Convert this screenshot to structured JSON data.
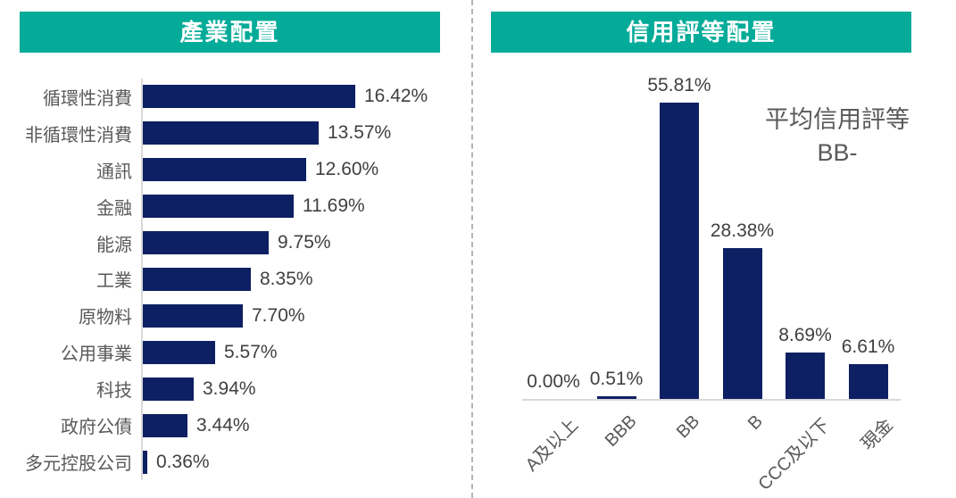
{
  "colors": {
    "header_bg": "#05AB99",
    "header_text": "#FFFFFF",
    "bar": "#0D2063",
    "category_text": "#595959",
    "value_text": "#404040",
    "axis_line": "#D9D9D9",
    "divider": "#B3B3B3"
  },
  "chart_data": [
    {
      "type": "bar",
      "orientation": "horizontal",
      "title": "產業配置",
      "categories": [
        "循環性消費",
        "非循環性消費",
        "通訊",
        "金融",
        "能源",
        "工業",
        "原物料",
        "公用事業",
        "科技",
        "政府公債",
        "多元控股公司"
      ],
      "values": [
        16.42,
        13.57,
        12.6,
        11.69,
        9.75,
        8.35,
        7.7,
        5.57,
        3.94,
        3.44,
        0.36
      ],
      "value_labels": [
        "16.42%",
        "13.57%",
        "12.60%",
        "11.69%",
        "9.75%",
        "8.35%",
        "7.70%",
        "5.57%",
        "3.94%",
        "3.44%",
        "0.36%"
      ],
      "unit": "%",
      "xlim": [
        0,
        17
      ],
      "grid": false,
      "legend": false,
      "data_labels": "outside-end"
    },
    {
      "type": "bar",
      "orientation": "vertical",
      "title": "信用評等配置",
      "categories": [
        "A及以上",
        "BBB",
        "BB",
        "B",
        "CCC及以下",
        "現金"
      ],
      "values": [
        0.0,
        0.51,
        55.81,
        28.38,
        8.69,
        6.61
      ],
      "value_labels": [
        "0.00%",
        "0.51%",
        "55.81%",
        "28.38%",
        "8.69%",
        "6.61%"
      ],
      "unit": "%",
      "ylim": [
        0,
        60
      ],
      "grid": false,
      "legend": false,
      "data_labels": "above",
      "x_tick_rotation": 45,
      "annotation": {
        "line1": "平均信用評等",
        "line2": "BB-"
      }
    }
  ]
}
